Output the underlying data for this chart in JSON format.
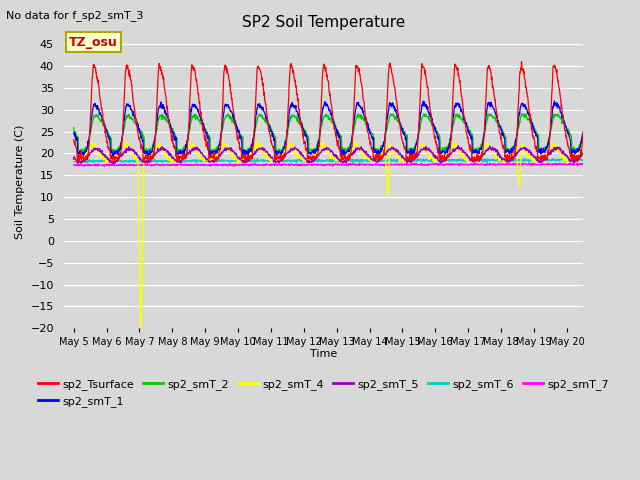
{
  "title": "SP2 Soil Temperature",
  "subtitle": "No data for f_sp2_smT_3",
  "xlabel": "Time",
  "ylabel": "Soil Temperature (C)",
  "ylim": [
    -20,
    47
  ],
  "xlim": [
    -0.3,
    15.5
  ],
  "yticks": [
    -20,
    -15,
    -10,
    -5,
    0,
    5,
    10,
    15,
    20,
    25,
    30,
    35,
    40,
    45
  ],
  "xtick_labels": [
    "May 5",
    "May 6",
    "May 7",
    "May 8",
    "May 9",
    "May 10",
    "May 11",
    "May 12",
    "May 13",
    "May 14",
    "May 15",
    "May 16",
    "May 17",
    "May 18",
    "May 19",
    "May 20"
  ],
  "xtick_positions": [
    0,
    1,
    2,
    3,
    4,
    5,
    6,
    7,
    8,
    9,
    10,
    11,
    12,
    13,
    14,
    15
  ],
  "bg_color": "#d8d8d8",
  "grid_color": "#ffffff",
  "tz_label": "TZ_osu",
  "colors": {
    "surface": "#ff0000",
    "smT_1": "#0000ff",
    "smT_2": "#00cc00",
    "smT_4": "#ffff00",
    "smT_5": "#9900bb",
    "smT_6": "#00cccc",
    "smT_7": "#ff00ff"
  }
}
